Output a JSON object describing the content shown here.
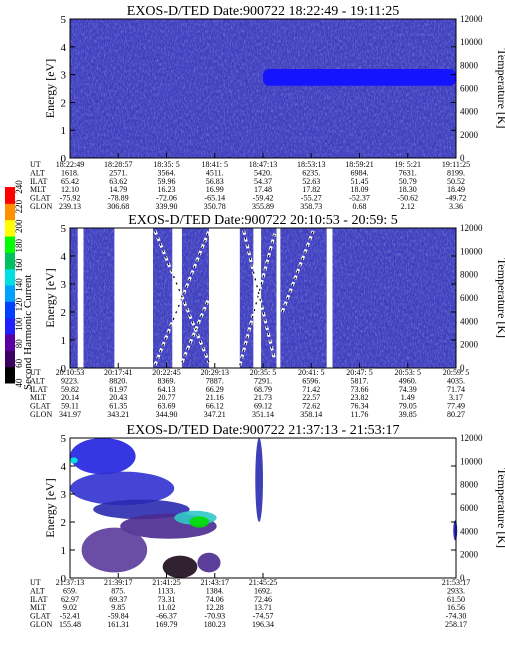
{
  "y_axis_label": "Energy [eV]",
  "y2_axis_label": "Temperature [K]",
  "colorbar": {
    "label": "Second Harmonic Current",
    "ticks": [
      "40",
      "60",
      "80",
      "100",
      "120",
      "140",
      "160",
      "180",
      "200",
      "220",
      "240"
    ],
    "colors": [
      "#000000",
      "#3b0060",
      "#5a00a0",
      "#2020ff",
      "#0040ff",
      "#00a0ff",
      "#00e0e0",
      "#00c060",
      "#00ff00",
      "#ffff00",
      "#ff9000",
      "#ff0000"
    ]
  },
  "colors": {
    "background_field": "#3a3abf",
    "noise_dark": "#22228a",
    "noise_light": "#5a5ae0",
    "band": "#1414ff",
    "gap": "#ffffff"
  },
  "chart_data": [
    {
      "type": "heatmap",
      "title": "EXOS-D/TED   Date:900722   18:22:49 - 19:11:25",
      "ylim": [
        0,
        5
      ],
      "yticks": [
        "0",
        "1",
        "2",
        "3",
        "4",
        "5"
      ],
      "y2lim": [
        0,
        12000
      ],
      "y2ticks": [
        "0",
        "2000",
        "4000",
        "6000",
        "8000",
        "10000",
        "12000"
      ],
      "row_labels": [
        "UT",
        "ALT",
        "ILAT",
        "MLT",
        "GLAT",
        "GLON"
      ],
      "columns": [
        {
          "x": 0.0,
          "values": [
            "18:22:49",
            "1618.",
            "65.42",
            "12.10",
            "-75.92",
            "239.13"
          ]
        },
        {
          "x": 0.125,
          "values": [
            "18:28:57",
            "2571.",
            "63.62",
            "14.79",
            "-78.89",
            "306.68"
          ]
        },
        {
          "x": 0.25,
          "values": [
            "18:35: 5",
            "3564.",
            "59.96",
            "16.23",
            "-72.06",
            "339.90"
          ]
        },
        {
          "x": 0.375,
          "values": [
            "18:41: 5",
            "4511.",
            "56.83",
            "16.99",
            "-65.14",
            "350.78"
          ]
        },
        {
          "x": 0.5,
          "values": [
            "18:47:13",
            "5420.",
            "54.37",
            "17.48",
            "-59.42",
            "355.89"
          ]
        },
        {
          "x": 0.625,
          "values": [
            "18:53:13",
            "6235.",
            "52.63",
            "17.82",
            "-55.27",
            "358.73"
          ]
        },
        {
          "x": 0.75,
          "values": [
            "18:59:21",
            "6984.",
            "51.45",
            "18.09",
            "-52.37",
            "0.68"
          ]
        },
        {
          "x": 0.875,
          "values": [
            "19: 5:21",
            "7631.",
            "50.79",
            "18.30",
            "-50.62",
            "2.12"
          ]
        },
        {
          "x": 1.0,
          "values": [
            "19:11:25",
            "8199.",
            "50.52",
            "18.49",
            "-49.72",
            "3.36"
          ]
        }
      ],
      "band": {
        "x_start": 0.5,
        "x_end": 1.0,
        "y_low": 2.6,
        "y_high": 3.2
      }
    },
    {
      "type": "heatmap",
      "title": "EXOS-D/TED   Date:900722   20:10:53 - 20:59: 5",
      "ylim": [
        0,
        5
      ],
      "yticks": [
        "0",
        "1",
        "2",
        "3",
        "4",
        "5"
      ],
      "y2lim": [
        0,
        12000
      ],
      "y2ticks": [
        "0",
        "2000",
        "4000",
        "6000",
        "8000",
        "10000",
        "12000"
      ],
      "row_labels": [
        "UT",
        "ALT",
        "ILAT",
        "MLT",
        "GLAT",
        "GLON"
      ],
      "columns": [
        {
          "x": 0.0,
          "values": [
            "20:10:53",
            "9223.",
            "59.82",
            "20.14",
            "59.11",
            "341.97"
          ]
        },
        {
          "x": 0.125,
          "values": [
            "20:17:41",
            "8820.",
            "61.97",
            "20.43",
            "61.35",
            "343.21"
          ]
        },
        {
          "x": 0.25,
          "values": [
            "20:22:45",
            "8369.",
            "64.13",
            "20.77",
            "63.69",
            "344.90"
          ]
        },
        {
          "x": 0.375,
          "values": [
            "20:29:13",
            "7887.",
            "66.29",
            "21.16",
            "66.12",
            "347.21"
          ]
        },
        {
          "x": 0.5,
          "values": [
            "20:35: 5",
            "7291.",
            "68.79",
            "21.73",
            "69.12",
            "351.14"
          ]
        },
        {
          "x": 0.625,
          "values": [
            "20:41: 5",
            "6596.",
            "71.42",
            "22.57",
            "72.62",
            "358.14"
          ]
        },
        {
          "x": 0.75,
          "values": [
            "20:47: 5",
            "5817.",
            "73.66",
            "23.82",
            "76.34",
            "11.76"
          ]
        },
        {
          "x": 0.875,
          "values": [
            "20:53: 5",
            "4960.",
            "74.39",
            "1.49",
            "79.05",
            "39.85"
          ]
        },
        {
          "x": 1.0,
          "values": [
            "20:59: 5",
            "4035.",
            "71.74",
            "3.17",
            "77.49",
            "80.27"
          ]
        }
      ],
      "gaps": [
        [
          0.02,
          0.035
        ],
        [
          0.115,
          0.215
        ],
        [
          0.265,
          0.29
        ],
        [
          0.36,
          0.44
        ],
        [
          0.475,
          0.495
        ],
        [
          0.535,
          0.545
        ],
        [
          0.665,
          0.68
        ]
      ]
    },
    {
      "type": "heatmap",
      "title": "EXOS-D/TED   Date:900722   21:37:13 - 21:53:17",
      "ylim": [
        0,
        5
      ],
      "yticks": [
        "0",
        "1",
        "2",
        "3",
        "4",
        "5"
      ],
      "y2lim": [
        0,
        12000
      ],
      "y2ticks": [
        "0",
        "2000",
        "4000",
        "6000",
        "8000",
        "10000",
        "12000"
      ],
      "row_labels": [
        "UT",
        "ALT",
        "ILAT",
        "MLT",
        "GLAT",
        "GLON"
      ],
      "columns": [
        {
          "x": 0.0,
          "values": [
            "21:37:13",
            "659.",
            "62.97",
            "9.02",
            "-52.41",
            "155.48"
          ]
        },
        {
          "x": 0.125,
          "values": [
            "21:39:17",
            "875.",
            "69.37",
            "9.85",
            "-59.84",
            "161.31"
          ]
        },
        {
          "x": 0.25,
          "values": [
            "21:41:25",
            "1133.",
            "73.31",
            "11.02",
            "-66.37",
            "169.79"
          ]
        },
        {
          "x": 0.375,
          "values": [
            "21:43:17",
            "1384.",
            "74.06",
            "12.28",
            "-70.93",
            "180.23"
          ]
        },
        {
          "x": 0.5,
          "values": [
            "21:45:25",
            "1692.",
            "72.46",
            "13.71",
            "-74.57",
            "196.34"
          ]
        },
        {
          "x": 1.0,
          "values": [
            "21:53:17",
            "2933.",
            "61.50",
            "16.56",
            "-74.30",
            "258.17"
          ]
        }
      ]
    }
  ]
}
